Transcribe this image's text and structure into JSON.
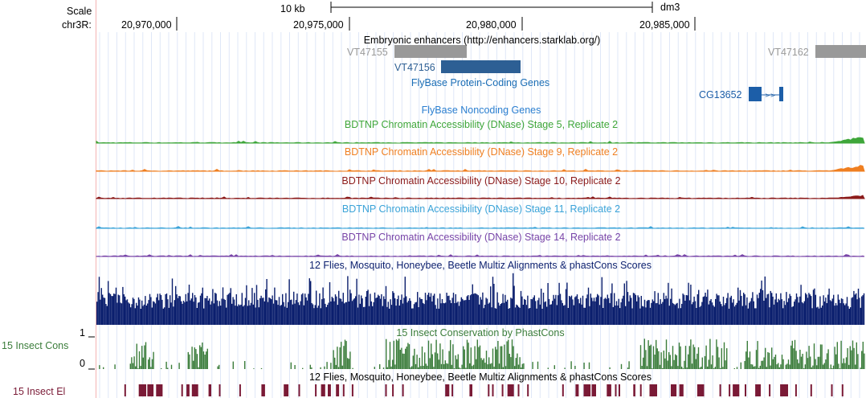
{
  "header": {
    "scale_label": "Scale",
    "chrom_label": "chr3R:",
    "scale_bar_label": "10 kb",
    "assembly": "dm3",
    "positions": [
      "20,970,000",
      "20,975,000",
      "20,980,000",
      "20,985,000"
    ]
  },
  "tracks": {
    "enhancers": {
      "title": "Embryonic enhancers (http://enhancers.starklab.org/)",
      "items": [
        "VT47155",
        "VT47156",
        "VT47162"
      ],
      "colors": {
        "gray": "#999999",
        "blue": "#2d5f94"
      }
    },
    "protein_coding": {
      "title": "FlyBase Protein-Coding Genes",
      "color": "#1a6db5"
    },
    "gene": {
      "name": "CG13652",
      "color": "#1c5ea8"
    },
    "noncoding": {
      "title": "FlyBase Noncoding Genes",
      "color": "#2b7fd0"
    },
    "dnase": [
      {
        "title": "BDTNP Chromatin Accessibility (DNase) Stage 5, Replicate 2",
        "color": "#3ea63a"
      },
      {
        "title": "BDTNP Chromatin Accessibility (DNase) Stage 9, Replicate 2",
        "color": "#ef7f21"
      },
      {
        "title": "BDTNP Chromatin Accessibility (DNase) Stage 10, Replicate 2",
        "color": "#8b1a1a"
      },
      {
        "title": "BDTNP Chromatin Accessibility (DNase) Stage 11, Replicate 2",
        "color": "#3aa3d8"
      },
      {
        "title": "BDTNP Chromatin Accessibility (DNase) Stage 14, Replicate 2",
        "color": "#7845a8"
      }
    ],
    "multiz": {
      "title": "12 Flies, Mosquito, Honeybee, Beetle Multiz Alignments & phastCons Scores",
      "color": "#0b1f6e"
    },
    "phastcons": {
      "title": "15 Insect Conservation by PhastCons",
      "side_label": "15 Insect Cons",
      "scale_max": "1",
      "scale_min": "0",
      "color": "#3b7d3b"
    },
    "elements": {
      "title": "12 Flies, Mosquito, Honeybee, Beetle Multiz Alignments & phastCons Scores",
      "side_label": "15 Insect El",
      "color": "#7a1a36"
    }
  }
}
